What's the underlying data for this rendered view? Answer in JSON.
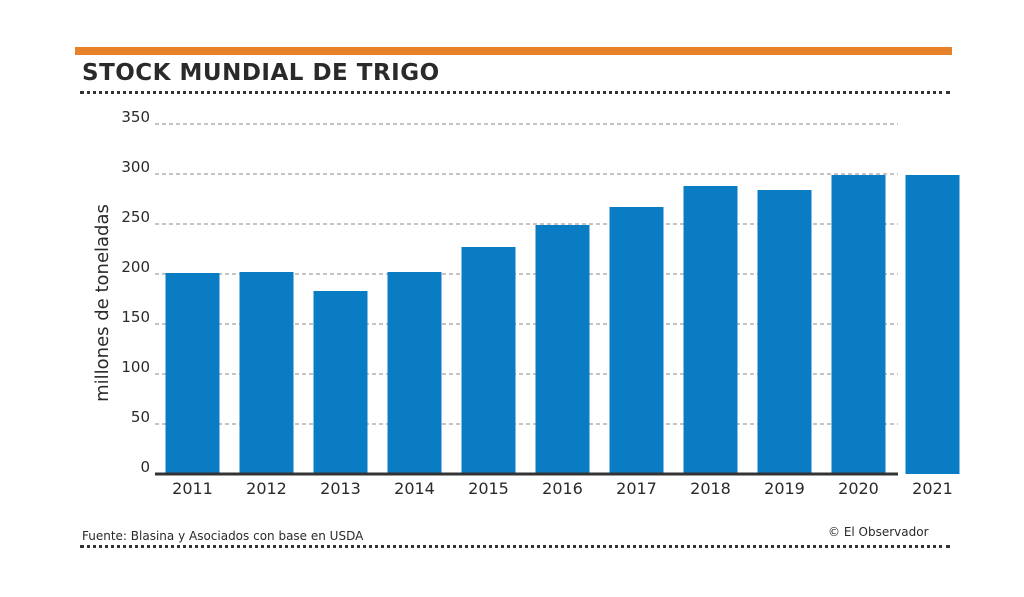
{
  "colors": {
    "accent": "#e8822a",
    "bar": "#0a7cc4",
    "text": "#2a2a2a"
  },
  "header": {
    "title": "STOCK MUNDIAL DE TRIGO"
  },
  "footer": {
    "source": "Fuente: Blasina y Asociados con base en USDA",
    "credit": "© El Observador"
  },
  "chart_data": {
    "type": "bar",
    "title": "STOCK MUNDIAL DE TRIGO",
    "xlabel": "",
    "ylabel": "millones de toneladas",
    "categories": [
      "2011",
      "2012",
      "2013",
      "2014",
      "2015",
      "2016",
      "2017",
      "2018",
      "2019",
      "2020",
      "2021"
    ],
    "values": [
      201,
      202,
      183,
      202,
      227,
      249,
      267,
      288,
      284,
      299,
      299
    ],
    "ylim": [
      0,
      350
    ],
    "yticks": [
      0,
      50,
      100,
      150,
      200,
      250,
      300,
      350
    ],
    "grid": true,
    "legend": "none"
  }
}
